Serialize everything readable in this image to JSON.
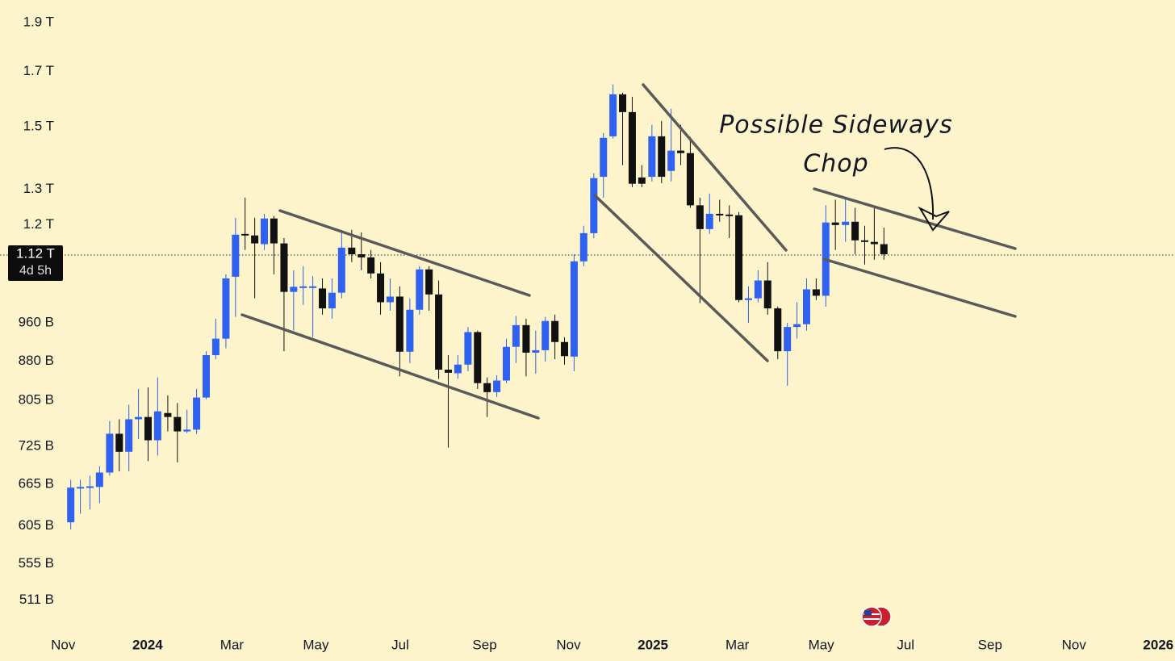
{
  "chart_data": {
    "type": "candlestick",
    "log_scale": true,
    "grid": false,
    "up_color": "#2f62f0",
    "down_color": "#111111",
    "annotation": "Possible Sideways\nChop",
    "price_line": {
      "value": 1120,
      "label": "1.12 T",
      "countdown": "4d 5h"
    },
    "xlim": [
      2023.708,
      2026.033
    ],
    "xticks": [
      {
        "value": 2023.833,
        "label": "Nov"
      },
      {
        "value": 2024,
        "label": "2024"
      },
      {
        "value": 2024.167,
        "label": "Mar"
      },
      {
        "value": 2024.333,
        "label": "May"
      },
      {
        "value": 2024.5,
        "label": "Jul"
      },
      {
        "value": 2024.667,
        "label": "Sep"
      },
      {
        "value": 2024.833,
        "label": "Nov"
      },
      {
        "value": 2025,
        "label": "2025"
      },
      {
        "value": 2025.167,
        "label": "Mar"
      },
      {
        "value": 2025.333,
        "label": "May"
      },
      {
        "value": 2025.5,
        "label": "Jul"
      },
      {
        "value": 2025.667,
        "label": "Sep"
      },
      {
        "value": 2025.833,
        "label": "Nov"
      },
      {
        "value": 2026,
        "label": "2026"
      }
    ],
    "ylim": [
      478,
      2000
    ],
    "yticks": [
      {
        "value": 1900,
        "label": "1.9 T"
      },
      {
        "value": 1700,
        "label": "1.7 T"
      },
      {
        "value": 1500,
        "label": "1.5 T"
      },
      {
        "value": 1300,
        "label": "1.3 T"
      },
      {
        "value": 1200,
        "label": "1.2 T"
      },
      {
        "value": 960,
        "label": "960 B"
      },
      {
        "value": 880,
        "label": "880 B"
      },
      {
        "value": 805,
        "label": "805 B"
      },
      {
        "value": 725,
        "label": "725 B"
      },
      {
        "value": 665,
        "label": "665 B"
      },
      {
        "value": 605,
        "label": "605 B"
      },
      {
        "value": 555,
        "label": "555 B"
      },
      {
        "value": 511,
        "label": "511 B"
      }
    ],
    "x": [
      2023.848,
      2023.867,
      2023.886,
      2023.905,
      2023.925,
      2023.944,
      2023.963,
      2023.982,
      2024.001,
      2024.02,
      2024.04,
      2024.059,
      2024.078,
      2024.097,
      2024.116,
      2024.135,
      2024.155,
      2024.174,
      2024.193,
      2024.212,
      2024.231,
      2024.25,
      2024.27,
      2024.289,
      2024.308,
      2024.327,
      2024.346,
      2024.365,
      2024.384,
      2024.404,
      2024.423,
      2024.442,
      2024.461,
      2024.48,
      2024.499,
      2024.519,
      2024.538,
      2024.557,
      2024.576,
      2024.595,
      2024.614,
      2024.634,
      2024.653,
      2024.672,
      2024.691,
      2024.71,
      2024.729,
      2024.749,
      2024.768,
      2024.787,
      2024.806,
      2024.825,
      2024.844,
      2024.863,
      2024.883,
      2024.902,
      2024.921,
      2024.94,
      2024.959,
      2024.978,
      2024.998,
      2025.017,
      2025.036,
      2025.055,
      2025.074,
      2025.093,
      2025.112,
      2025.132,
      2025.151,
      2025.17,
      2025.189,
      2025.208,
      2025.227,
      2025.247,
      2025.266,
      2025.285,
      2025.304,
      2025.323,
      2025.342,
      2025.361,
      2025.381,
      2025.4,
      2025.419,
      2025.438,
      2025.457
    ],
    "open": [
      610,
      659,
      660,
      661,
      683,
      746,
      716,
      771,
      775,
      735,
      782,
      775,
      750,
      753,
      810,
      892,
      926,
      1066,
      1175,
      1171,
      1148,
      1217,
      1150,
      1030,
      1040,
      1042,
      1038,
      992,
      1028,
      1139,
      1122,
      1114,
      1074,
      1006,
      1019,
      899,
      989,
      1084,
      1024,
      863,
      856,
      873,
      940,
      837,
      820,
      842,
      909,
      955,
      897,
      902,
      964,
      919,
      889,
      1104,
      1177,
      1338,
      1467,
      1614,
      1550,
      1336,
      1338,
      1467,
      1356,
      1420,
      1412,
      1254,
      1188,
      1230,
      1228,
      1226,
      1011,
      1015,
      1057,
      992,
      900,
      951,
      957,
      1036,
      1021,
      1206,
      1199,
      1208,
      1158,
      1154,
      1148
    ],
    "high": [
      672,
      672,
      678,
      693,
      768,
      771,
      797,
      826,
      829,
      848,
      814,
      800,
      788,
      826,
      900,
      969,
      1072,
      1219,
      1276,
      1219,
      1230,
      1224,
      1164,
      1082,
      1092,
      1068,
      1062,
      1062,
      1186,
      1186,
      1179,
      1133,
      1102,
      1062,
      1043,
      1015,
      1092,
      1092,
      1057,
      892,
      892,
      951,
      943,
      848,
      852,
      926,
      975,
      969,
      943,
      973,
      978,
      929,
      1122,
      1197,
      1349,
      1478,
      1650,
      1620,
      1605,
      1374,
      1506,
      1519,
      1562,
      1506,
      1465,
      1276,
      1288,
      1270,
      1254,
      1235,
      1043,
      1082,
      1102,
      996,
      960,
      1006,
      1062,
      1062,
      1254,
      1270,
      1276,
      1247,
      1197,
      1247,
      1192
    ],
    "low": [
      600,
      622,
      628,
      637,
      678,
      685,
      685,
      737,
      701,
      710,
      750,
      699,
      747,
      746,
      807,
      884,
      906,
      973,
      1133,
      1015,
      1133,
      1072,
      900,
      943,
      1000,
      929,
      978,
      969,
      1015,
      1102,
      1082,
      1062,
      978,
      987,
      850,
      876,
      978,
      987,
      845,
      723,
      845,
      860,
      826,
      775,
      811,
      837,
      876,
      850,
      855,
      879,
      884,
      873,
      860,
      1092,
      1164,
      1276,
      1460,
      1374,
      1307,
      1307,
      1324,
      1319,
      1324,
      1374,
      1247,
      1004,
      1175,
      1208,
      1164,
      1006,
      960,
      1006,
      978,
      884,
      832,
      926,
      943,
      1011,
      996,
      1133,
      1154,
      1122,
      1096,
      1108,
      1108
    ],
    "close": [
      660,
      661,
      662,
      683,
      746,
      716,
      771,
      775,
      735,
      785,
      775,
      750,
      753,
      810,
      892,
      926,
      1062,
      1173,
      1171,
      1150,
      1217,
      1150,
      1030,
      1042,
      1043,
      1043,
      992,
      1028,
      1139,
      1122,
      1114,
      1074,
      1006,
      1019,
      899,
      989,
      1084,
      1024,
      863,
      857,
      873,
      940,
      837,
      820,
      842,
      909,
      955,
      897,
      902,
      964,
      919,
      890,
      1104,
      1177,
      1334,
      1462,
      1614,
      1550,
      1317,
      1317,
      1467,
      1338,
      1420,
      1412,
      1254,
      1188,
      1230,
      1228,
      1226,
      1011,
      1015,
      1057,
      992,
      900,
      951,
      957,
      1036,
      1021,
      1206,
      1199,
      1208,
      1158,
      1154,
      1148,
      1122
    ]
  }
}
